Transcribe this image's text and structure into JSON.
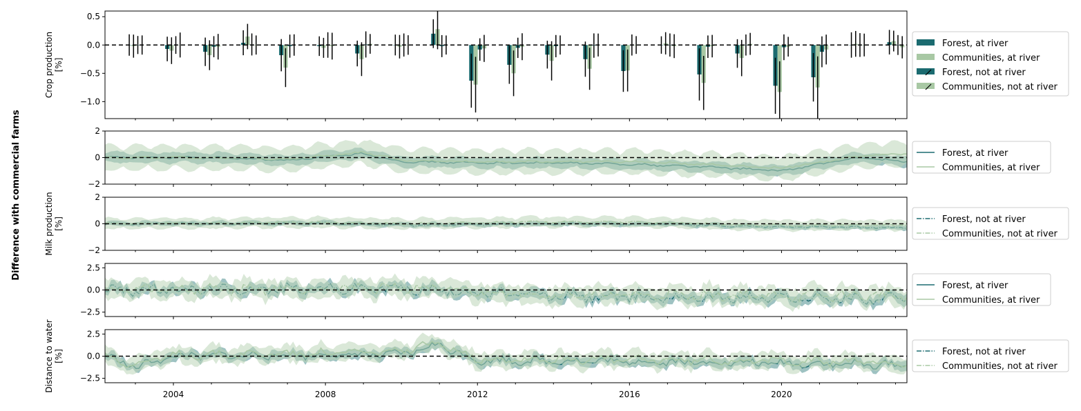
{
  "figure": {
    "ylabel": "Difference with commercial farms"
  },
  "colors": {
    "forest": "#1b6b70",
    "communities": "#a8c8a4",
    "forest_band": "#4f8f8f",
    "communities_band": "#bcd6b8"
  },
  "chart_data": [
    {
      "type": "bar",
      "ylabel": "Crop production\n[%]",
      "ylim": [
        -1.3,
        0.6
      ],
      "yticks": [
        -1.0,
        -0.5,
        0.0,
        0.5
      ],
      "ytick_labels": [
        "−1.0",
        "−0.5",
        "0.0",
        "0.5"
      ],
      "xlim": [
        2002.2,
        2023.3
      ],
      "grid": false,
      "legend_placement": "right",
      "categories": [
        2003,
        2004,
        2005,
        2006,
        2007,
        2008,
        2009,
        2010,
        2011,
        2012,
        2013,
        2014,
        2015,
        2016,
        2017,
        2018,
        2019,
        2020,
        2021,
        2022,
        2023
      ],
      "series": [
        {
          "name": "Forest, at river",
          "values": [
            0.0,
            -0.07,
            -0.12,
            0.04,
            -0.18,
            -0.02,
            -0.15,
            0.0,
            0.2,
            -0.63,
            -0.35,
            -0.17,
            -0.25,
            -0.46,
            0.0,
            -0.52,
            -0.15,
            -0.72,
            -0.57,
            0.0,
            0.05
          ]
        },
        {
          "name": "Communities, at river",
          "values": [
            -0.02,
            -0.1,
            -0.18,
            0.15,
            -0.4,
            -0.05,
            -0.25,
            -0.03,
            0.28,
            -0.7,
            -0.5,
            -0.28,
            -0.42,
            -0.45,
            0.03,
            -0.67,
            -0.23,
            -0.83,
            -0.75,
            0.02,
            0.07
          ]
        },
        {
          "name": "Forest, not at river",
          "values": [
            0.0,
            0.0,
            -0.03,
            0.01,
            -0.02,
            0.0,
            0.01,
            0.0,
            -0.02,
            -0.08,
            -0.05,
            -0.02,
            -0.01,
            0.0,
            0.0,
            -0.03,
            0.0,
            -0.04,
            -0.12,
            0.0,
            0.0
          ]
        },
        {
          "name": "Communities, not at river",
          "values": [
            0.0,
            0.0,
            -0.03,
            0.0,
            0.0,
            -0.02,
            0.02,
            0.0,
            0.0,
            -0.06,
            -0.03,
            0.0,
            0.0,
            0.0,
            -0.02,
            -0.02,
            0.02,
            -0.03,
            -0.08,
            0.0,
            -0.04
          ]
        }
      ],
      "legend": [
        "Forest, at river",
        "Communities, at river",
        "Forest, not at river",
        "Communities, not at river"
      ]
    },
    {
      "type": "line",
      "ylabel": "",
      "ylim": [
        -2,
        2
      ],
      "yticks": [
        -2,
        0,
        2
      ],
      "ytick_labels": [
        "−2",
        "0",
        "2"
      ],
      "x_range": [
        2002.2,
        2023.3
      ],
      "series": [
        {
          "name": "Forest, at river",
          "trend": [
            [
              2002.2,
              0.0
            ],
            [
              2005,
              0.0
            ],
            [
              2007,
              -0.2
            ],
            [
              2009,
              0.3
            ],
            [
              2010,
              -0.3
            ],
            [
              2012,
              -0.4
            ],
            [
              2014,
              -0.4
            ],
            [
              2016,
              -0.5
            ],
            [
              2018,
              -0.7
            ],
            [
              2020,
              -1.0
            ],
            [
              2022,
              0.0
            ],
            [
              2023.3,
              -0.3
            ]
          ],
          "band": 0.35
        },
        {
          "name": "Communities, at river",
          "trend": [
            [
              2002.2,
              0.0
            ],
            [
              2005,
              0.0
            ],
            [
              2007,
              -0.1
            ],
            [
              2009,
              0.4
            ],
            [
              2010,
              -0.2
            ],
            [
              2012,
              -0.3
            ],
            [
              2014,
              -0.3
            ],
            [
              2016,
              -0.3
            ],
            [
              2018,
              -0.5
            ],
            [
              2020,
              -0.8
            ],
            [
              2022,
              0.1
            ],
            [
              2023.3,
              0.3
            ]
          ],
          "band": 0.8
        }
      ],
      "legend": [
        "Forest, at river",
        "Communities, at river"
      ]
    },
    {
      "type": "line",
      "ylabel": "Milk production\n[%]",
      "ylim": [
        -2,
        2
      ],
      "yticks": [
        -2,
        0,
        2
      ],
      "ytick_labels": [
        "−2",
        "0",
        "2"
      ],
      "x_range": [
        2002.2,
        2023.3
      ],
      "series": [
        {
          "name": "Forest, not at river",
          "trend": [
            [
              2002.2,
              0.0
            ],
            [
              2008,
              0.05
            ],
            [
              2010,
              -0.1
            ],
            [
              2014,
              0.0
            ],
            [
              2017,
              0.0
            ],
            [
              2019,
              -0.2
            ],
            [
              2023.3,
              -0.3
            ]
          ],
          "band": 0.15
        },
        {
          "name": "Communities, not at river",
          "trend": [
            [
              2002.2,
              0.0
            ],
            [
              2008,
              0.1
            ],
            [
              2010,
              0.0
            ],
            [
              2014,
              0.15
            ],
            [
              2017,
              0.1
            ],
            [
              2019,
              -0.1
            ],
            [
              2023.3,
              -0.1
            ]
          ],
          "band": 0.35
        }
      ],
      "legend": [
        "Forest, not at river",
        "Communities, not at river"
      ]
    },
    {
      "type": "line",
      "ylabel": "",
      "ylim": [
        -3.0,
        3.0
      ],
      "yticks": [
        -2.5,
        0.0,
        2.5
      ],
      "ytick_labels": [
        "−2.5",
        "0.0",
        "2.5"
      ],
      "x_range": [
        2002.2,
        2023.3
      ],
      "series": [
        {
          "name": "Forest, at river",
          "trend": [
            [
              2002.2,
              0.0
            ],
            [
              2010,
              0.2
            ],
            [
              2012,
              -0.3
            ],
            [
              2014,
              -0.7
            ],
            [
              2016,
              -0.8
            ],
            [
              2018,
              -0.8
            ],
            [
              2020,
              -0.9
            ],
            [
              2023.3,
              -1.0
            ]
          ],
          "band": 0.5,
          "amp": 0.9
        },
        {
          "name": "Communities, at river",
          "trend": [
            [
              2002.2,
              0.0
            ],
            [
              2010,
              0.3
            ],
            [
              2012,
              -0.2
            ],
            [
              2014,
              -0.5
            ],
            [
              2016,
              -0.6
            ],
            [
              2018,
              -0.6
            ],
            [
              2020,
              -0.7
            ],
            [
              2023.3,
              -0.6
            ]
          ],
          "band": 0.9,
          "amp": 0.9
        }
      ],
      "legend": [
        "Forest, at river",
        "Communities, at river"
      ]
    },
    {
      "type": "line",
      "ylabel": "Distance to water\n[%]",
      "ylim": [
        -3.0,
        3.0
      ],
      "yticks": [
        -2.5,
        0.0,
        2.5
      ],
      "ytick_labels": [
        "−2.5",
        "0.0",
        "2.5"
      ],
      "x_range": [
        2002.2,
        2023.3
      ],
      "xticks": [
        2004,
        2008,
        2012,
        2016,
        2020
      ],
      "xtick_labels": [
        "2004",
        "2008",
        "2012",
        "2016",
        "2020"
      ],
      "series": [
        {
          "name": "Forest, not at river",
          "trend": [
            [
              2002.2,
              0.0
            ],
            [
              2003,
              -1.2
            ],
            [
              2004,
              0.0
            ],
            [
              2010,
              0.2
            ],
            [
              2011,
              1.3
            ],
            [
              2012,
              -0.5
            ],
            [
              2016,
              -0.6
            ],
            [
              2020,
              -0.8
            ],
            [
              2023.3,
              -1.0
            ]
          ],
          "band": 0.45,
          "amp": 0.7
        },
        {
          "name": "Communities, not at river",
          "trend": [
            [
              2002.2,
              0.0
            ],
            [
              2003,
              -1.0
            ],
            [
              2004,
              0.1
            ],
            [
              2010,
              0.5
            ],
            [
              2011,
              1.5
            ],
            [
              2012,
              -0.3
            ],
            [
              2016,
              -0.4
            ],
            [
              2020,
              -0.5
            ],
            [
              2023.3,
              -0.8
            ]
          ],
          "band": 0.8,
          "amp": 0.7
        }
      ],
      "legend": [
        "Forest, not at river",
        "Communities, not at river"
      ]
    }
  ]
}
